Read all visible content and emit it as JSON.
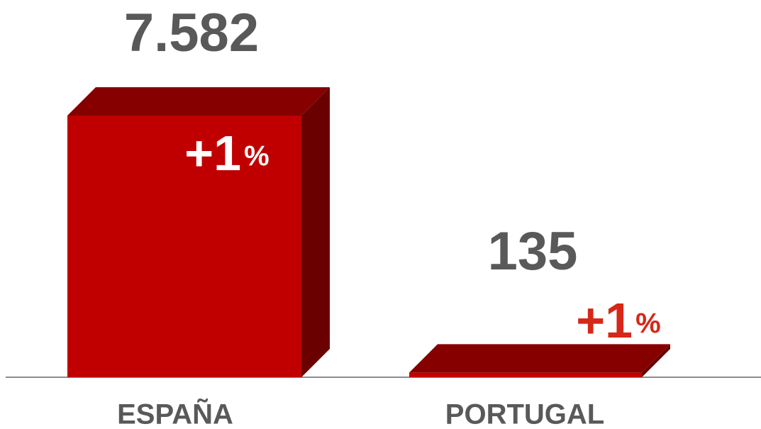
{
  "chart_data": {
    "type": "bar3d",
    "categories": [
      "ESPAÑA",
      "PORTUGAL"
    ],
    "values": [
      7582,
      135
    ],
    "value_labels": [
      "7.582",
      "135"
    ],
    "annotations": [
      "+1%",
      "+1%"
    ],
    "color": "#c00000"
  }
}
